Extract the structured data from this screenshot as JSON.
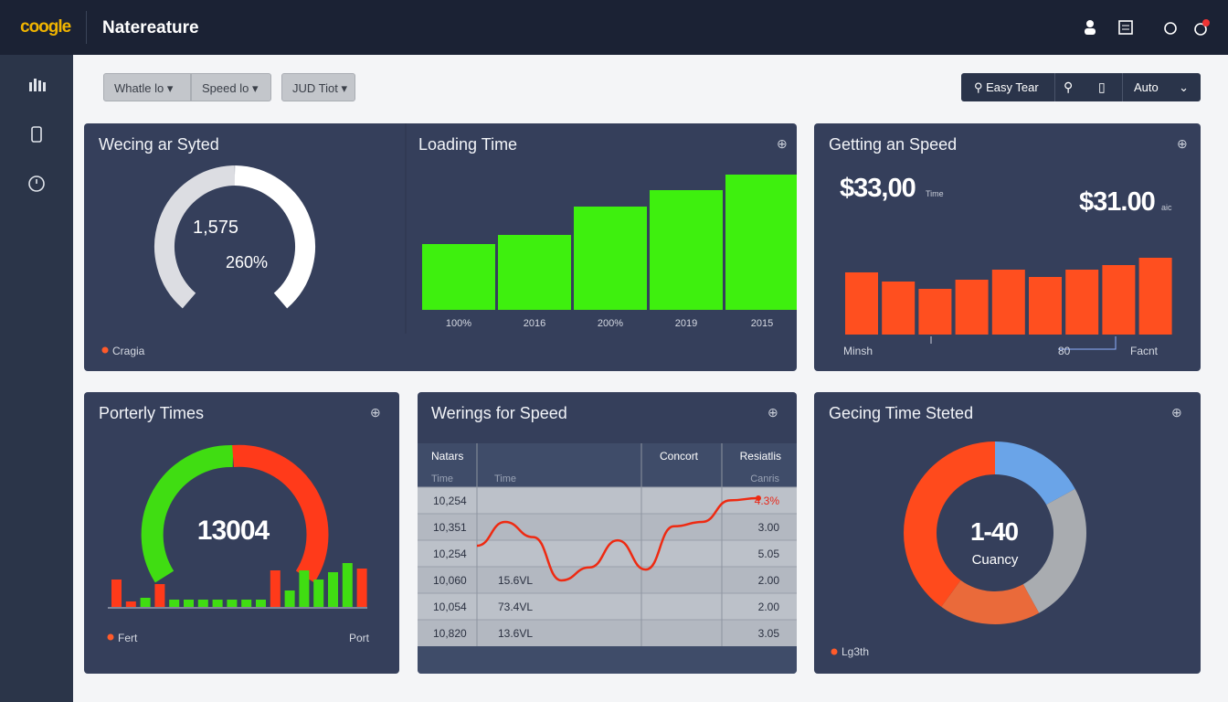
{
  "header": {
    "logo": "coogle",
    "title": "Natereature"
  },
  "filters": [
    "Whatle lo",
    "Speed lo",
    "JUD Tiot"
  ],
  "toolbar": {
    "search": "Easy Tear",
    "select": "Auto"
  },
  "gauge_panel": {
    "title": "Wecing ar Syted",
    "value": "1,575",
    "percent": "260%",
    "legend": "Cragia"
  },
  "loading_panel": {
    "title": "Loading Time",
    "labels": [
      "100%",
      "2016",
      "200%",
      "2019",
      "2015"
    ],
    "values": [
      72,
      82,
      113,
      131,
      148
    ],
    "color": "#3ef00e"
  },
  "speed_panel": {
    "title": "Getting an Speed",
    "kpi1": "$33,00",
    "kpi1_unit": "Time",
    "kpi2": "$31.00",
    "kpi2_unit": "aic",
    "values": [
      68,
      58,
      50,
      60,
      71,
      63,
      71,
      76,
      84
    ],
    "color": "#ff4f1f",
    "labels": [
      "Minsh",
      "80",
      "Facnt"
    ]
  },
  "porterly_panel": {
    "title": "Porterly Times",
    "value": "13004",
    "values": [
      30,
      6,
      10,
      25,
      8,
      8,
      8,
      8,
      8,
      8,
      8,
      40,
      18,
      40,
      30,
      38,
      48,
      42
    ],
    "colors": [
      "#ff3a1a",
      "#ff3a1a",
      "#40dd12",
      "#ff3a1a",
      "#40dd12",
      "#40dd12",
      "#40dd12",
      "#40dd12",
      "#40dd12",
      "#40dd12",
      "#40dd12",
      "#ff3a1a",
      "#40dd12",
      "#40dd12",
      "#40dd12",
      "#40dd12",
      "#40dd12",
      "#ff3a1a"
    ],
    "legend_left": "Fert",
    "legend_right": "Port"
  },
  "table_panel": {
    "title": "Werings for Speed",
    "headers": [
      "Natars",
      "Concort",
      "Resiatlis"
    ],
    "subheaders": [
      "Time",
      "Time",
      "Canris"
    ],
    "rows": [
      {
        "a": "10,254",
        "c": "4.3%"
      },
      {
        "a": "10,351",
        "c": "3.00"
      },
      {
        "a": "10,254",
        "c": "5.05"
      },
      {
        "a": "10,060",
        "b": "15.6VL",
        "c": "2.00"
      },
      {
        "a": "10,054",
        "b": "73.4VL",
        "c": "2.00"
      },
      {
        "a": "10,820",
        "b": "13.6VL",
        "c": "3.05"
      }
    ],
    "trend": [
      40,
      62,
      48,
      8,
      20,
      45,
      18,
      58,
      62,
      82,
      84
    ]
  },
  "donut_panel": {
    "title": "Gecing Time Steted",
    "value": "1-40",
    "caption": "Cuancy",
    "legend": "Lg3th",
    "values": [
      17,
      25,
      18,
      40
    ],
    "colors": [
      "#6aa4e8",
      "#a9acb0",
      "#ea6a3a",
      "#ff4a1c"
    ]
  }
}
